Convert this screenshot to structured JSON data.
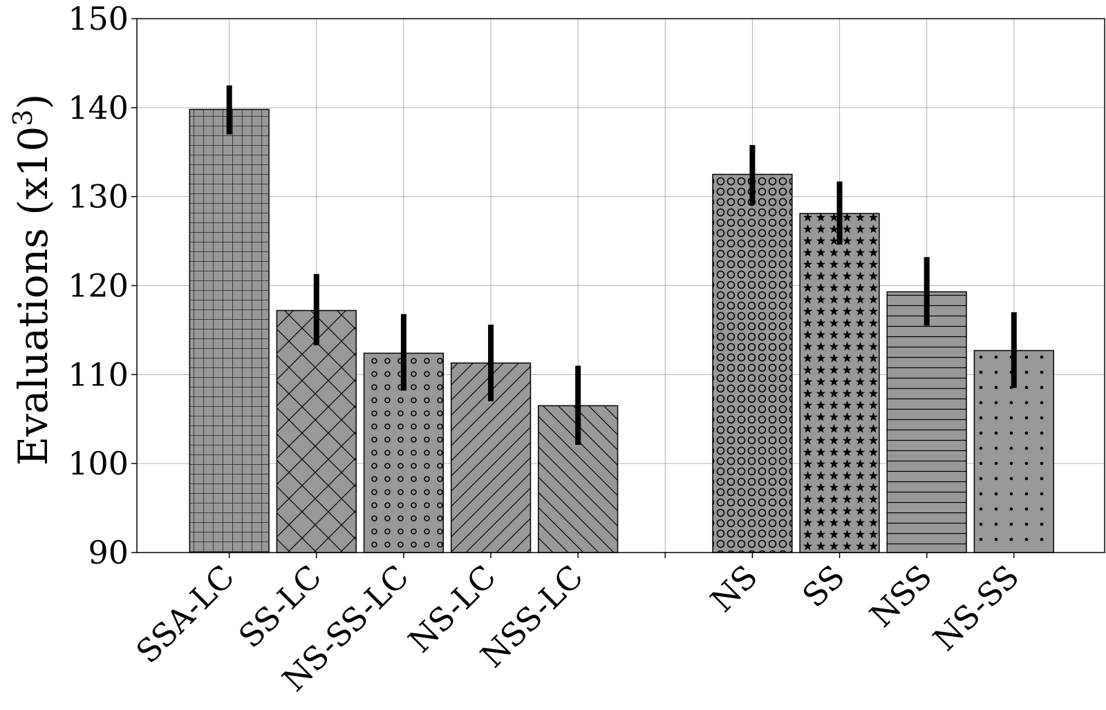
{
  "chart_data": {
    "type": "bar",
    "title": "",
    "xlabel": "",
    "ylabel": "Evaluations (x10",
    "ylabel_superscript": "3",
    "ylabel_suffix": ")",
    "ylim": [
      90,
      150
    ],
    "yticks": [
      90,
      100,
      110,
      120,
      130,
      140,
      150
    ],
    "grid": true,
    "bar_color": "#999999",
    "categories": [
      "SSA-LC",
      "SS-LC",
      "NS-SS-LC",
      "NS-LC",
      "NSS-LC",
      "",
      "NS",
      "SS",
      "NSS",
      "NS-SS"
    ],
    "values": [
      139.8,
      117.2,
      112.4,
      111.3,
      106.5,
      null,
      132.5,
      128.1,
      119.3,
      112.7
    ],
    "error_low": [
      137.0,
      113.3,
      108.2,
      107.0,
      102.1,
      null,
      129.1,
      124.6,
      115.5,
      108.5
    ],
    "error_high": [
      142.5,
      121.3,
      116.8,
      115.6,
      111.0,
      null,
      135.8,
      131.7,
      123.2,
      117.0
    ],
    "hatches": [
      "grid",
      "cross",
      "small-circles",
      "diagonal-up",
      "diagonal-down",
      "",
      "circles",
      "stars",
      "horizontal",
      "dots"
    ]
  }
}
